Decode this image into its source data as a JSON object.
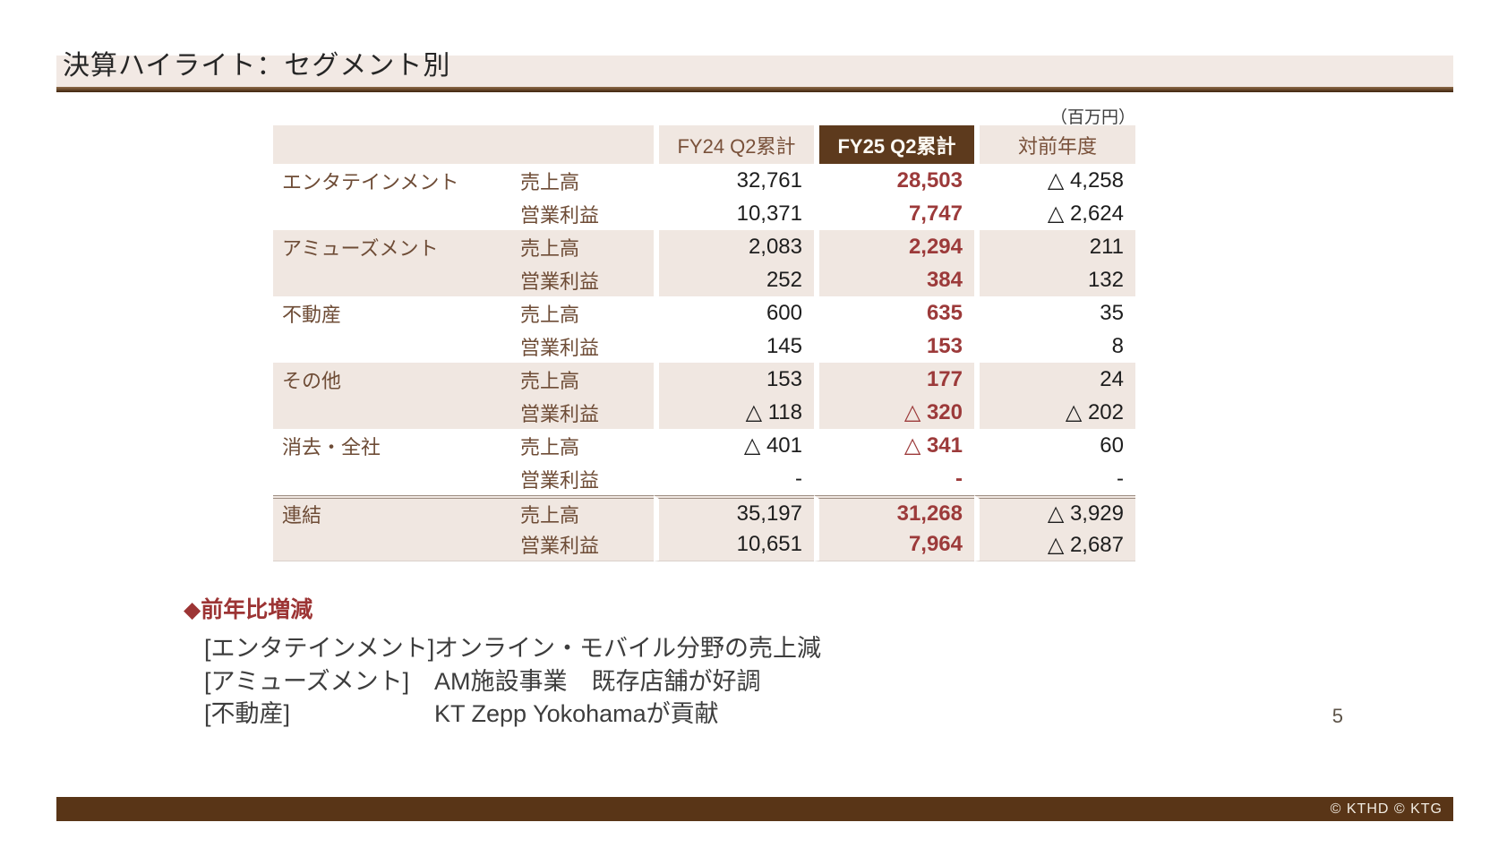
{
  "title": "決算ハイライト：セグメント別",
  "unit_note": "（百万円）",
  "table": {
    "col_headers": [
      "FY24 Q2累計",
      "FY25 Q2累計",
      "対前年度"
    ],
    "rows": [
      {
        "segment": "エンタテインメント",
        "metric": "売上高",
        "fy24": "32,761",
        "fy25": "28,503",
        "yoy": "△ 4,258"
      },
      {
        "segment": "",
        "metric": "営業利益",
        "fy24": "10,371",
        "fy25": "7,747",
        "yoy": "△ 2,624"
      },
      {
        "segment": "アミューズメント",
        "metric": "売上高",
        "fy24": "2,083",
        "fy25": "2,294",
        "yoy": "211"
      },
      {
        "segment": "",
        "metric": "営業利益",
        "fy24": "252",
        "fy25": "384",
        "yoy": "132"
      },
      {
        "segment": "不動産",
        "metric": "売上高",
        "fy24": "600",
        "fy25": "635",
        "yoy": "35"
      },
      {
        "segment": "",
        "metric": "営業利益",
        "fy24": "145",
        "fy25": "153",
        "yoy": "8"
      },
      {
        "segment": "その他",
        "metric": "売上高",
        "fy24": "153",
        "fy25": "177",
        "yoy": "24"
      },
      {
        "segment": "",
        "metric": "営業利益",
        "fy24": "△ 118",
        "fy25": "△ 320",
        "yoy": "△ 202"
      },
      {
        "segment": "消去・全社",
        "metric": "売上高",
        "fy24": "△ 401",
        "fy25": "△ 341",
        "yoy": "60"
      },
      {
        "segment": "",
        "metric": "営業利益",
        "fy24": "-",
        "fy25": "-",
        "yoy": "-"
      },
      {
        "segment": "連結",
        "metric": "売上高",
        "fy24": "35,197",
        "fy25": "31,268",
        "yoy": "△ 3,929"
      },
      {
        "segment": "",
        "metric": "営業利益",
        "fy24": "10,651",
        "fy25": "7,964",
        "yoy": "△ 2,687"
      }
    ]
  },
  "notes": {
    "heading": "◆前年比増減",
    "items": [
      {
        "label": "[エンタテインメント]",
        "desc": "オンライン・モバイル分野の売上減"
      },
      {
        "label": "[アミューズメント]",
        "desc": "AM施設事業　既存店舗が好調"
      },
      {
        "label": "[不動産]",
        "desc": "KT Zepp Yokohamaが貢献"
      }
    ]
  },
  "page_number": "5",
  "footer": {
    "copyright": "© KTHD © KTG"
  },
  "colors": {
    "title_bar_bg": "#f2e9e4",
    "accent_brown_dark": "#5d3a1d",
    "accent_brown_line": "#4a2c12",
    "stripe_beige": "#f0e7e1",
    "header_text_brown": "#79513a",
    "segment_text_brown": "#6e4c36",
    "highlight_maroon": "#9c3a3a",
    "notes_heading_red": "#9c3434",
    "footer_bg": "#593517",
    "value_text": "#1d1d1d"
  }
}
